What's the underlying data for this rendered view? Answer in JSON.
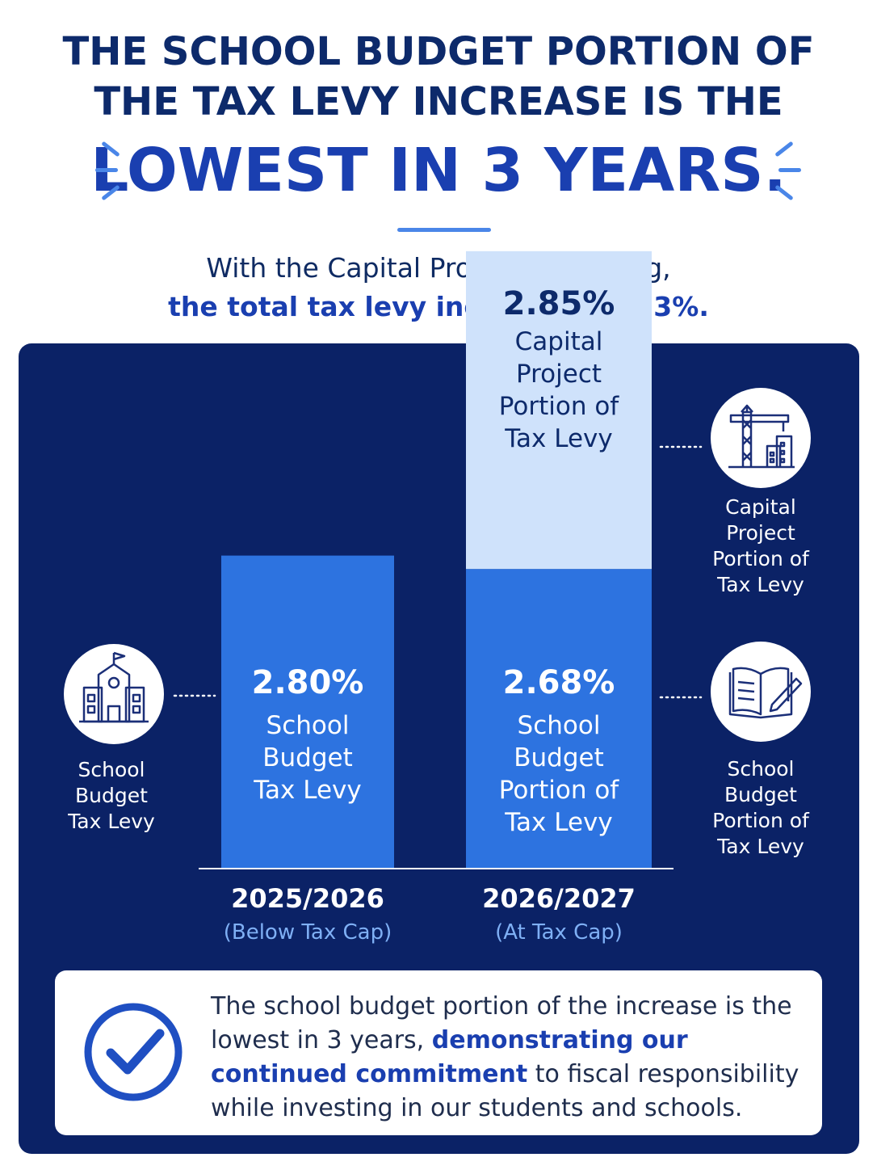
{
  "title": {
    "line1": "THE SCHOOL BUDGET PORTION OF",
    "line2": "THE TAX LEVY INCREASE IS THE",
    "line3": "LOWEST IN 3 YEARS."
  },
  "subtitle": {
    "line1": "With the Capital Project borrowing,",
    "line2": "the total tax levy increase is 5.53%."
  },
  "colors": {
    "navy": "#0b2266",
    "school_bar": "#2d73e0",
    "capital_bar": "#cfe2fb",
    "accent": "#4a86e8",
    "title": "#0d2a6b",
    "highlight": "#1a3fb0",
    "year_sub": "#7fb0f5"
  },
  "chart_data": {
    "type": "bar",
    "stacked": true,
    "categories": [
      "2025/2026",
      "2026/2027"
    ],
    "category_notes": [
      "(Below Tax Cap)",
      "(At Tax Cap)"
    ],
    "series": [
      {
        "name": "School Budget",
        "values": [
          2.8,
          2.68
        ],
        "value_labels": [
          "2.80%",
          "2.68%"
        ],
        "bar_labels": [
          [
            "School",
            "Budget",
            "Tax Levy"
          ],
          [
            "School",
            "Budget",
            "Portion of",
            "Tax Levy"
          ]
        ]
      },
      {
        "name": "Capital Project",
        "values": [
          0,
          2.85
        ],
        "value_labels": [
          "",
          "2.85%"
        ],
        "bar_labels": [
          [],
          [
            "Capital",
            "Project",
            "Portion of",
            "Tax Levy"
          ]
        ]
      }
    ],
    "side_labels": {
      "left_school": [
        "School",
        "Budget",
        "Tax Levy"
      ],
      "right_capital": [
        "Capital",
        "Project",
        "Portion of",
        "Tax Levy"
      ],
      "right_school": [
        "School",
        "Budget",
        "Portion of",
        "Tax Levy"
      ]
    },
    "icons": {
      "left_school": "school-building-icon",
      "right_capital": "construction-crane-icon",
      "right_school": "open-book-pencil-icon"
    }
  },
  "callout": {
    "part1": "The school budget portion of the increase is the lowest in 3 years, ",
    "highlight": "demonstrating our continued commitment",
    "part2": " to fiscal responsibility while investing in our students and schools.",
    "icon": "checkmark-circle-icon"
  }
}
